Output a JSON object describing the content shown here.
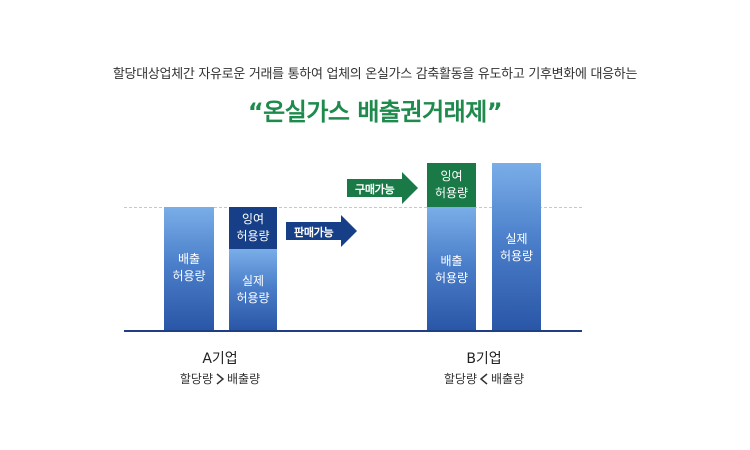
{
  "header": {
    "subtitle": "할당대상업체간 자유로운 거래를 통하여 업체의 온실가스 감축활동을 유도하고 기후변화에 대응하는",
    "title": "“온실가스 배출권거래제”"
  },
  "company_a": {
    "name": "A기업",
    "relation_left": "할당량",
    "relation_right": "배출량",
    "relation_symbol": "greater-than",
    "bar_emission_label": "배출\n허용량",
    "bar_surplus_label": "잉여\n허용량",
    "bar_actual_label": "실제\n허용량",
    "arrow_label": "판매가능"
  },
  "company_b": {
    "name": "B기업",
    "relation_left": "할당량",
    "relation_right": "배출량",
    "relation_symbol": "less-than",
    "bar_emission_label": "배출\n허용량",
    "bar_surplus_label": "잉여\n허용량",
    "bar_actual_label": "실제\n허용량",
    "arrow_label": "구매가능"
  },
  "colors": {
    "title_green": "#1e8a4c",
    "bar_blue": "#4c80cb",
    "bar_dark_blue": "#163f88",
    "bar_green": "#1a7a47"
  }
}
